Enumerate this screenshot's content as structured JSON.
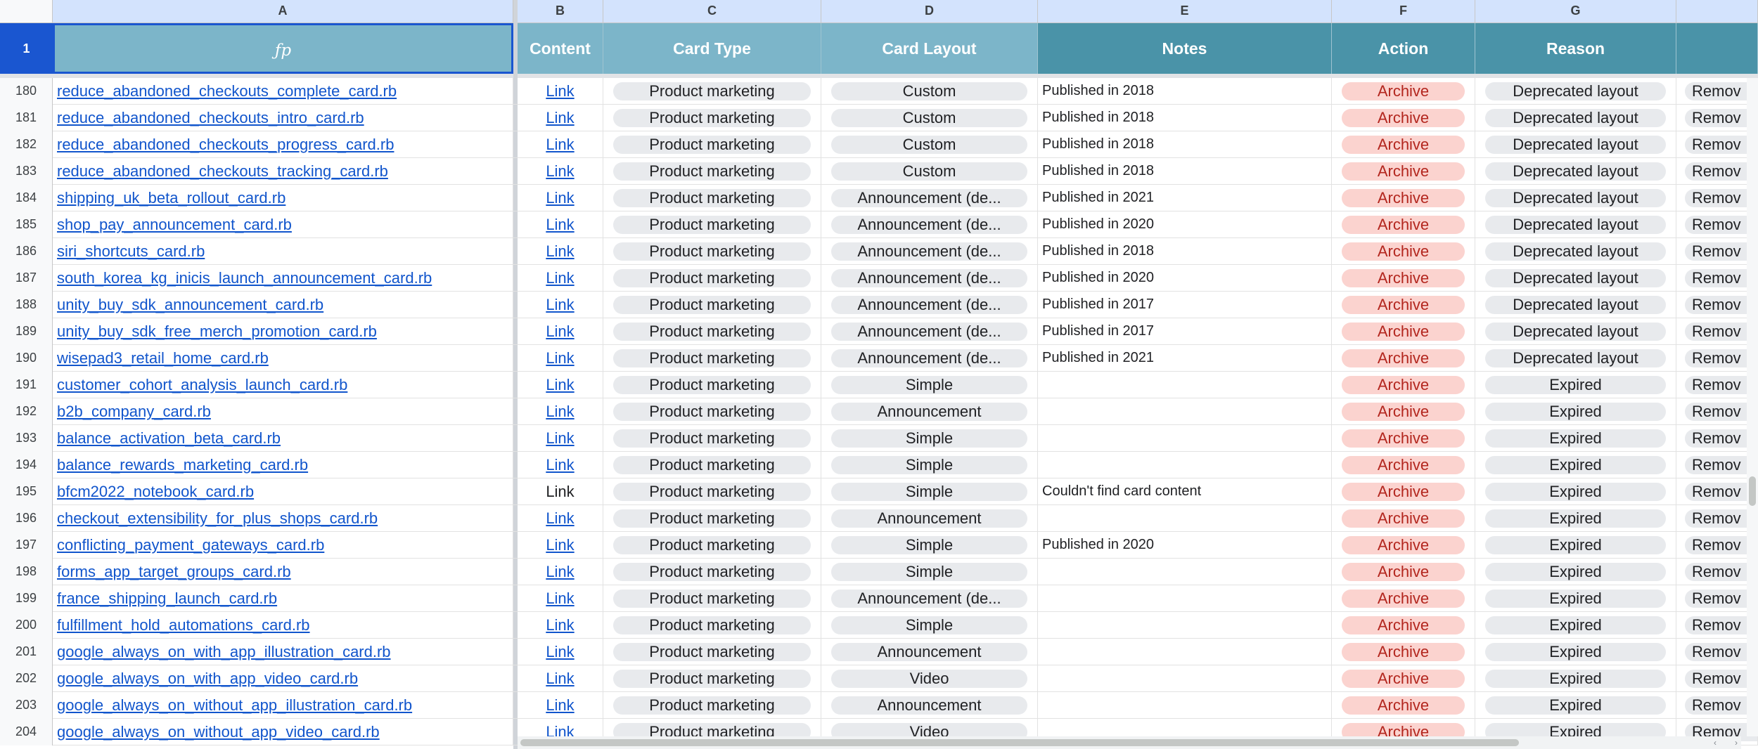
{
  "columns": [
    "A",
    "B",
    "C",
    "D",
    "E",
    "F",
    "G"
  ],
  "header": {
    "row_number": "1",
    "fp": "ƒp",
    "content": "Content",
    "card_type": "Card Type",
    "card_layout": "Card Layout",
    "notes": "Notes",
    "action": "Action",
    "reason": "Reason"
  },
  "rows": [
    {
      "n": "180",
      "file": "reduce_abandoned_checkouts_complete_card.rb",
      "content": "Link",
      "type": "Product marketing",
      "layout": "Custom",
      "notes": "Published in 2018",
      "action": "Archive",
      "reason": "Deprecated layout",
      "extra": "Remov"
    },
    {
      "n": "181",
      "file": "reduce_abandoned_checkouts_intro_card.rb",
      "content": "Link",
      "type": "Product marketing",
      "layout": "Custom",
      "notes": "Published in 2018",
      "action": "Archive",
      "reason": "Deprecated layout",
      "extra": "Remov"
    },
    {
      "n": "182",
      "file": "reduce_abandoned_checkouts_progress_card.rb",
      "content": "Link",
      "type": "Product marketing",
      "layout": "Custom",
      "notes": "Published in 2018",
      "action": "Archive",
      "reason": "Deprecated layout",
      "extra": "Remov"
    },
    {
      "n": "183",
      "file": "reduce_abandoned_checkouts_tracking_card.rb",
      "content": "Link",
      "type": "Product marketing",
      "layout": "Custom",
      "notes": "Published in 2018",
      "action": "Archive",
      "reason": "Deprecated layout",
      "extra": "Remov"
    },
    {
      "n": "184",
      "file": "shipping_uk_beta_rollout_card.rb",
      "content": "Link",
      "type": "Product marketing",
      "layout": "Announcement (de...",
      "notes": "Published in 2021",
      "action": "Archive",
      "reason": "Deprecated layout",
      "extra": "Remov"
    },
    {
      "n": "185",
      "file": "shop_pay_announcement_card.rb",
      "content": "Link",
      "type": "Product marketing",
      "layout": "Announcement (de...",
      "notes": "Published in 2020",
      "action": "Archive",
      "reason": "Deprecated layout",
      "extra": "Remov"
    },
    {
      "n": "186",
      "file": "siri_shortcuts_card.rb",
      "content": "Link",
      "type": "Product marketing",
      "layout": "Announcement (de...",
      "notes": "Published in 2018",
      "action": "Archive",
      "reason": "Deprecated layout",
      "extra": "Remov"
    },
    {
      "n": "187",
      "file": "south_korea_kg_inicis_launch_announcement_card.rb",
      "content": "Link",
      "type": "Product marketing",
      "layout": "Announcement (de...",
      "notes": "Published in 2020",
      "action": "Archive",
      "reason": "Deprecated layout",
      "extra": "Remov"
    },
    {
      "n": "188",
      "file": "unity_buy_sdk_announcement_card.rb",
      "content": "Link",
      "type": "Product marketing",
      "layout": "Announcement (de...",
      "notes": "Published in 2017",
      "action": "Archive",
      "reason": "Deprecated layout",
      "extra": "Remov"
    },
    {
      "n": "189",
      "file": "unity_buy_sdk_free_merch_promotion_card.rb",
      "content": "Link",
      "type": "Product marketing",
      "layout": "Announcement (de...",
      "notes": "Published in 2017",
      "action": "Archive",
      "reason": "Deprecated layout",
      "extra": "Remov"
    },
    {
      "n": "190",
      "file": "wisepad3_retail_home_card.rb",
      "content": "Link",
      "type": "Product marketing",
      "layout": "Announcement (de...",
      "notes": "Published in 2021",
      "action": "Archive",
      "reason": "Deprecated layout",
      "extra": "Remov"
    },
    {
      "n": "191",
      "file": "customer_cohort_analysis_launch_card.rb",
      "content": "Link",
      "type": "Product marketing",
      "layout": "Simple",
      "notes": "",
      "action": "Archive",
      "reason": "Expired",
      "extra": "Remov"
    },
    {
      "n": "192",
      "file": "b2b_company_card.rb",
      "content": "Link",
      "type": "Product marketing",
      "layout": "Announcement",
      "notes": "",
      "action": "Archive",
      "reason": "Expired",
      "extra": "Remov"
    },
    {
      "n": "193",
      "file": "balance_activation_beta_card.rb",
      "content": "Link",
      "type": "Product marketing",
      "layout": "Simple",
      "notes": "",
      "action": "Archive",
      "reason": "Expired",
      "extra": "Remov"
    },
    {
      "n": "194",
      "file": "balance_rewards_marketing_card.rb",
      "content": "Link",
      "type": "Product marketing",
      "layout": "Simple",
      "notes": "",
      "action": "Archive",
      "reason": "Expired",
      "extra": "Remov"
    },
    {
      "n": "195",
      "file": "bfcm2022_notebook_card.rb",
      "content": "Link",
      "content_plain": true,
      "type": "Product marketing",
      "layout": "Simple",
      "notes": "Couldn't find card content",
      "action": "Archive",
      "reason": "Expired",
      "extra": "Remov"
    },
    {
      "n": "196",
      "file": "checkout_extensibility_for_plus_shops_card.rb",
      "content": "Link",
      "type": "Product marketing",
      "layout": "Announcement",
      "notes": "",
      "action": "Archive",
      "reason": "Expired",
      "extra": "Remov"
    },
    {
      "n": "197",
      "file": "conflicting_payment_gateways_card.rb",
      "content": "Link",
      "type": "Product marketing",
      "layout": "Simple",
      "notes": "Published in 2020",
      "action": "Archive",
      "reason": "Expired",
      "extra": "Remov"
    },
    {
      "n": "198",
      "file": "forms_app_target_groups_card.rb",
      "content": "Link",
      "type": "Product marketing",
      "layout": "Simple",
      "notes": "",
      "action": "Archive",
      "reason": "Expired",
      "extra": "Remov"
    },
    {
      "n": "199",
      "file": "france_shipping_launch_card.rb",
      "content": "Link",
      "type": "Product marketing",
      "layout": "Announcement (de...",
      "notes": "",
      "action": "Archive",
      "reason": "Expired",
      "extra": "Remov"
    },
    {
      "n": "200",
      "file": "fulfillment_hold_automations_card.rb",
      "content": "Link",
      "type": "Product marketing",
      "layout": "Simple",
      "notes": "",
      "action": "Archive",
      "reason": "Expired",
      "extra": "Remov"
    },
    {
      "n": "201",
      "file": "google_always_on_with_app_illustration_card.rb",
      "content": "Link",
      "type": "Product marketing",
      "layout": "Announcement",
      "notes": "",
      "action": "Archive",
      "reason": "Expired",
      "extra": "Remov"
    },
    {
      "n": "202",
      "file": "google_always_on_with_app_video_card.rb",
      "content": "Link",
      "type": "Product marketing",
      "layout": "Video",
      "notes": "",
      "action": "Archive",
      "reason": "Expired",
      "extra": "Remov"
    },
    {
      "n": "203",
      "file": "google_always_on_without_app_illustration_card.rb",
      "content": "Link",
      "type": "Product marketing",
      "layout": "Announcement",
      "notes": "",
      "action": "Archive",
      "reason": "Expired",
      "extra": "Remov"
    },
    {
      "n": "204",
      "file": "google_always_on_without_app_video_card.rb",
      "content": "Link",
      "type": "Product marketing",
      "layout": "Video",
      "notes": "",
      "action": "Archive",
      "reason": "Expired",
      "extra": "Remov"
    }
  ],
  "colors": {
    "header_light": "#7cb5c9",
    "header_dark": "#4a93a8",
    "selected_border": "#1a56d0",
    "archive_chip": "#fbd3cf",
    "archive_text": "#b3261e",
    "chip_gray": "#e8eaed",
    "link": "#1155cc"
  },
  "icons": {
    "scroll_left": "chevron-left-icon",
    "scroll_right": "chevron-right-icon"
  }
}
